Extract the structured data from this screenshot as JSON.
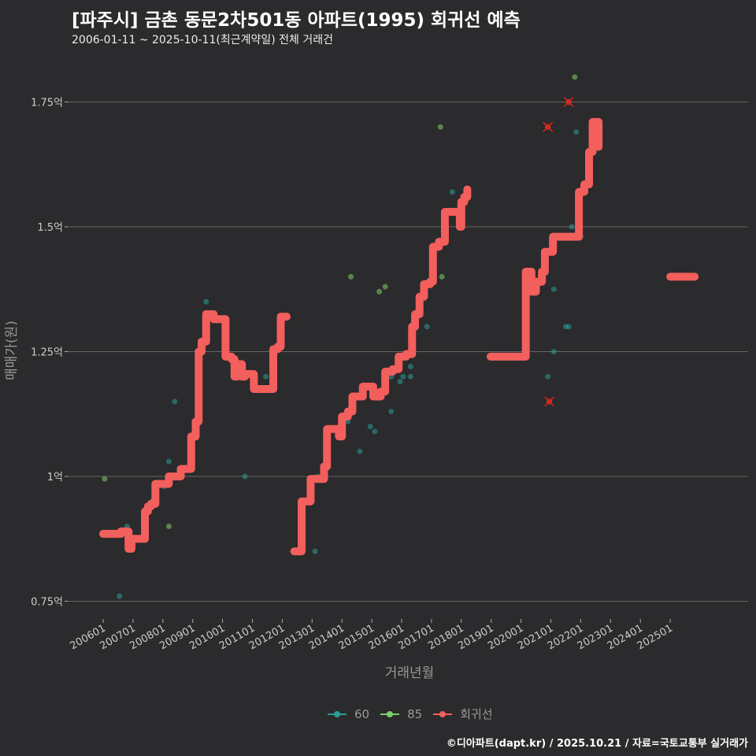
{
  "title": "[파주시] 금촌 동문2차501동 아파트(1995) 회귀선 예측",
  "subtitle": "2006-01-11 ~ 2025-10-11(최근계약일) 전체 거래건",
  "credit": "©디아파트(dapt.kr) / 2025.10.21 / 자료=국토교통부 실거래가",
  "colors": {
    "s60": "#2a9d98",
    "s85": "#7ccf6a",
    "reg": "#f25f5c",
    "grid": "#666666"
  },
  "chart_data": {
    "type": "scatter+line",
    "xlabel": "거래년월",
    "ylabel": "매매가(원)",
    "ylim": [
      0.72,
      1.82
    ],
    "xlim": [
      2005.0,
      2027.0
    ],
    "yticks": [
      {
        "v": 0.75,
        "label": "0.75억"
      },
      {
        "v": 1.0,
        "label": "1억"
      },
      {
        "v": 1.25,
        "label": "1.25억"
      },
      {
        "v": 1.5,
        "label": "1.5억"
      },
      {
        "v": 1.75,
        "label": "1.75억"
      }
    ],
    "xticks": [
      {
        "v": 2006,
        "label": "200601"
      },
      {
        "v": 2007,
        "label": "200701"
      },
      {
        "v": 2008,
        "label": "200801"
      },
      {
        "v": 2009,
        "label": "200901"
      },
      {
        "v": 2010,
        "label": "201001"
      },
      {
        "v": 2011,
        "label": "201101"
      },
      {
        "v": 2012,
        "label": "201201"
      },
      {
        "v": 2013,
        "label": "201301"
      },
      {
        "v": 2014,
        "label": "201401"
      },
      {
        "v": 2015,
        "label": "201501"
      },
      {
        "v": 2016,
        "label": "201601"
      },
      {
        "v": 2017,
        "label": "201701"
      },
      {
        "v": 2018,
        "label": "201801"
      },
      {
        "v": 2019,
        "label": "201901"
      },
      {
        "v": 2020,
        "label": "202001"
      },
      {
        "v": 2021,
        "label": "202101"
      },
      {
        "v": 2022,
        "label": "202201"
      },
      {
        "v": 2023,
        "label": "202301"
      },
      {
        "v": 2024,
        "label": "202401"
      },
      {
        "v": 2025,
        "label": "202501"
      }
    ],
    "legend": [
      {
        "key": "s60",
        "label": "60"
      },
      {
        "key": "s85",
        "label": "85"
      },
      {
        "key": "reg",
        "label": "회귀선"
      }
    ],
    "legend_position": "bottom",
    "points": [
      {
        "x": 2006.05,
        "y": 0.995,
        "s": "85"
      },
      {
        "x": 2006.55,
        "y": 0.76,
        "s": "60"
      },
      {
        "x": 2006.8,
        "y": 0.9,
        "s": "60"
      },
      {
        "x": 2007.65,
        "y": 0.95,
        "s": "85"
      },
      {
        "x": 2008.05,
        "y": 0.98,
        "s": "60"
      },
      {
        "x": 2008.2,
        "y": 0.9,
        "s": "85"
      },
      {
        "x": 2008.2,
        "y": 1.03,
        "s": "60"
      },
      {
        "x": 2008.4,
        "y": 1.15,
        "s": "60"
      },
      {
        "x": 2009.45,
        "y": 1.35,
        "s": "60"
      },
      {
        "x": 2010.15,
        "y": 1.3,
        "s": "60"
      },
      {
        "x": 2010.75,
        "y": 1.0,
        "s": "60"
      },
      {
        "x": 2011.45,
        "y": 1.2,
        "s": "60"
      },
      {
        "x": 2013.1,
        "y": 0.85,
        "s": "60"
      },
      {
        "x": 2013.2,
        "y": 1.0,
        "s": "60"
      },
      {
        "x": 2014.2,
        "y": 1.11,
        "s": "60"
      },
      {
        "x": 2014.3,
        "y": 1.4,
        "s": "85"
      },
      {
        "x": 2014.6,
        "y": 1.05,
        "s": "60"
      },
      {
        "x": 2014.95,
        "y": 1.1,
        "s": "60"
      },
      {
        "x": 2015.1,
        "y": 1.09,
        "s": "60"
      },
      {
        "x": 2015.25,
        "y": 1.37,
        "s": "85"
      },
      {
        "x": 2015.45,
        "y": 1.38,
        "s": "85"
      },
      {
        "x": 2015.65,
        "y": 1.13,
        "s": "60"
      },
      {
        "x": 2015.65,
        "y": 1.2,
        "s": "60"
      },
      {
        "x": 2015.95,
        "y": 1.19,
        "s": "60"
      },
      {
        "x": 2016.05,
        "y": 1.2,
        "s": "60"
      },
      {
        "x": 2016.3,
        "y": 1.2,
        "s": "60"
      },
      {
        "x": 2016.3,
        "y": 1.22,
        "s": "60"
      },
      {
        "x": 2016.85,
        "y": 1.3,
        "s": "60"
      },
      {
        "x": 2017.3,
        "y": 1.7,
        "s": "85"
      },
      {
        "x": 2017.35,
        "y": 1.4,
        "s": "85"
      },
      {
        "x": 2017.7,
        "y": 1.57,
        "s": "60"
      },
      {
        "x": 2020.9,
        "y": 1.7,
        "s": "85",
        "outlier": true
      },
      {
        "x": 2020.9,
        "y": 1.2,
        "s": "60"
      },
      {
        "x": 2020.95,
        "y": 1.15,
        "s": "60",
        "outlier": true
      },
      {
        "x": 2021.1,
        "y": 1.25,
        "s": "60"
      },
      {
        "x": 2021.1,
        "y": 1.375,
        "s": "60"
      },
      {
        "x": 2021.5,
        "y": 1.3,
        "s": "60"
      },
      {
        "x": 2021.6,
        "y": 1.3,
        "s": "60"
      },
      {
        "x": 2021.6,
        "y": 1.75,
        "s": "60",
        "outlier": true
      },
      {
        "x": 2021.8,
        "y": 1.8,
        "s": "85"
      },
      {
        "x": 2021.85,
        "y": 1.69,
        "s": "60"
      },
      {
        "x": 2021.7,
        "y": 1.5,
        "s": "60"
      },
      {
        "x": 2022.0,
        "y": 1.48,
        "s": "60"
      }
    ],
    "regression": [
      [
        [
          2006.0,
          0.885
        ],
        [
          2006.5,
          0.885
        ],
        [
          2006.6,
          0.89
        ],
        [
          2006.75,
          0.89
        ],
        [
          2006.85,
          0.855
        ],
        [
          2006.95,
          0.875
        ],
        [
          2007.35,
          0.875
        ],
        [
          2007.4,
          0.93
        ],
        [
          2007.5,
          0.94
        ],
        [
          2007.6,
          0.945
        ],
        [
          2007.75,
          0.985
        ],
        [
          2008.1,
          0.985
        ],
        [
          2008.2,
          1.0
        ],
        [
          2008.5,
          1.0
        ],
        [
          2008.6,
          1.015
        ],
        [
          2008.85,
          1.015
        ],
        [
          2008.95,
          1.08
        ],
        [
          2009.1,
          1.11
        ],
        [
          2009.2,
          1.25
        ],
        [
          2009.3,
          1.27
        ],
        [
          2009.45,
          1.325
        ],
        [
          2009.6,
          1.325
        ],
        [
          2009.7,
          1.315
        ],
        [
          2010.05,
          1.315
        ],
        [
          2010.1,
          1.24
        ],
        [
          2010.3,
          1.235
        ],
        [
          2010.4,
          1.2
        ],
        [
          2010.5,
          1.225
        ],
        [
          2010.65,
          1.2
        ],
        [
          2010.75,
          1.205
        ],
        [
          2010.95,
          1.205
        ],
        [
          2011.05,
          1.175
        ],
        [
          2011.6,
          1.175
        ],
        [
          2011.7,
          1.255
        ],
        [
          2011.85,
          1.26
        ],
        [
          2011.95,
          1.32
        ],
        [
          2012.15,
          1.32
        ]
      ],
      [
        [
          2012.4,
          0.85
        ],
        [
          2012.6,
          0.85
        ],
        [
          2012.65,
          0.95
        ],
        [
          2012.85,
          0.95
        ],
        [
          2012.95,
          0.995
        ],
        [
          2013.3,
          0.995
        ],
        [
          2013.4,
          1.02
        ],
        [
          2013.5,
          1.095
        ],
        [
          2013.8,
          1.095
        ],
        [
          2013.9,
          1.08
        ],
        [
          2014.0,
          1.12
        ],
        [
          2014.2,
          1.13
        ],
        [
          2014.35,
          1.16
        ],
        [
          2014.6,
          1.16
        ],
        [
          2014.7,
          1.18
        ],
        [
          2014.95,
          1.18
        ],
        [
          2015.05,
          1.16
        ],
        [
          2015.3,
          1.17
        ],
        [
          2015.45,
          1.21
        ],
        [
          2015.7,
          1.215
        ],
        [
          2015.9,
          1.24
        ],
        [
          2016.15,
          1.245
        ],
        [
          2016.25,
          1.245
        ],
        [
          2016.35,
          1.3
        ],
        [
          2016.45,
          1.325
        ],
        [
          2016.6,
          1.36
        ],
        [
          2016.75,
          1.385
        ],
        [
          2016.95,
          1.39
        ],
        [
          2017.05,
          1.46
        ],
        [
          2017.25,
          1.47
        ],
        [
          2017.45,
          1.53
        ],
        [
          2017.85,
          1.53
        ],
        [
          2017.95,
          1.5
        ],
        [
          2018.0,
          1.55
        ],
        [
          2018.1,
          1.56
        ],
        [
          2018.2,
          1.575
        ]
      ],
      [
        [
          2018.98,
          1.24
        ],
        [
          2020.14,
          1.24
        ],
        [
          2020.16,
          1.41
        ],
        [
          2020.3,
          1.41
        ],
        [
          2020.35,
          1.37
        ],
        [
          2020.5,
          1.39
        ],
        [
          2020.7,
          1.41
        ],
        [
          2020.8,
          1.45
        ],
        [
          2020.93,
          1.45
        ],
        [
          2021.07,
          1.48
        ],
        [
          2021.88,
          1.48
        ],
        [
          2021.94,
          1.57
        ],
        [
          2022.12,
          1.585
        ],
        [
          2022.28,
          1.65
        ],
        [
          2022.4,
          1.71
        ],
        [
          2022.6,
          1.66
        ]
      ],
      [
        [
          2025.0,
          1.4
        ],
        [
          2025.82,
          1.4
        ]
      ]
    ]
  }
}
